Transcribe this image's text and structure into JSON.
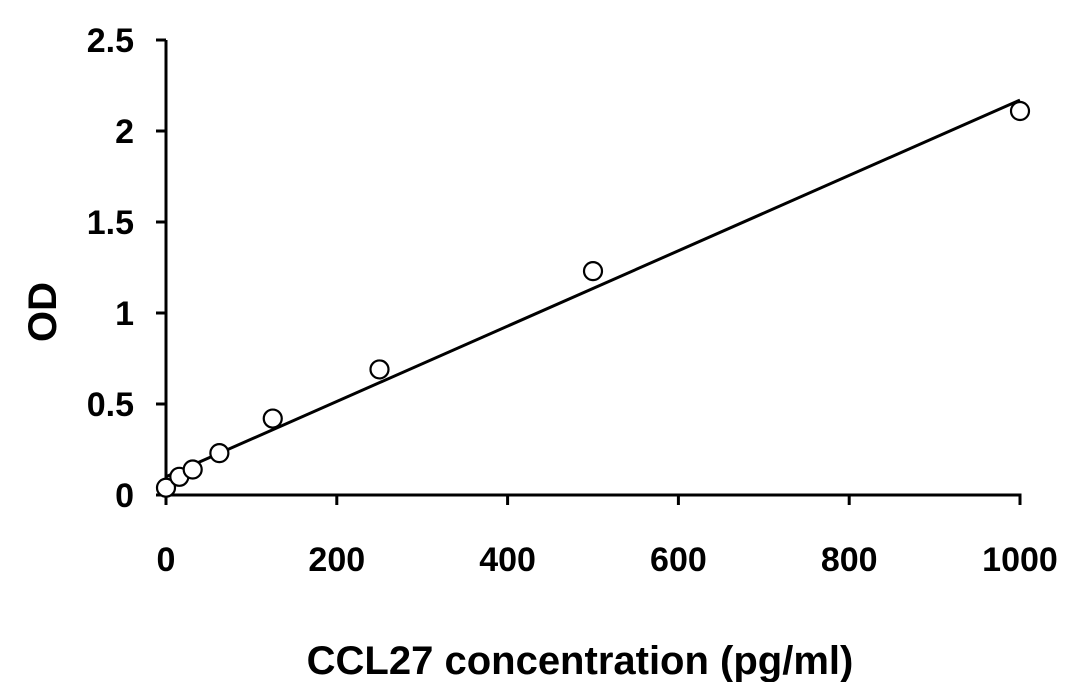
{
  "chart_data": {
    "type": "scatter",
    "title": "",
    "xlabel": "CCL27 concentration (pg/ml)",
    "ylabel": "OD",
    "xlim": [
      0,
      1000
    ],
    "ylim": [
      0,
      2.5
    ],
    "xticks": [
      0,
      200,
      400,
      600,
      800,
      1000
    ],
    "yticks": [
      0,
      0.5,
      1,
      1.5,
      2,
      2.5
    ],
    "xtick_labels": [
      "0",
      "200",
      "400",
      "600",
      "800",
      "1000"
    ],
    "ytick_labels": [
      "0",
      "0.5",
      "1",
      "1.5",
      "2",
      "2.5"
    ],
    "grid": false,
    "legend": "none",
    "series": [
      {
        "x": [
          0,
          15.6,
          31.25,
          62.5,
          125,
          250,
          500,
          1000
        ],
        "y": [
          0.04,
          0.1,
          0.14,
          0.23,
          0.42,
          0.69,
          1.23,
          2.11
        ],
        "marker": "open-circle"
      }
    ],
    "trendline": {
      "type": "linear",
      "x": [
        0,
        1000
      ],
      "y": [
        0.1,
        2.17
      ]
    }
  }
}
